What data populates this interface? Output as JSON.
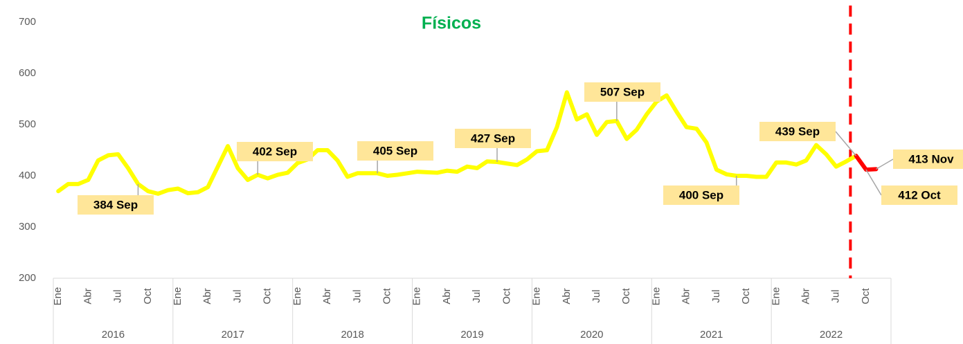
{
  "chart_data": {
    "type": "line",
    "title": "Físicos",
    "categories": [
      "Ene",
      null,
      null,
      "Abr",
      null,
      null,
      "Jul",
      null,
      null,
      "Oct",
      null,
      null,
      "Ene",
      null,
      null,
      "Abr",
      null,
      null,
      "Jul",
      null,
      null,
      "Oct",
      null,
      null,
      "Ene",
      null,
      null,
      "Abr",
      null,
      null,
      "Jul",
      null,
      null,
      "Oct",
      null,
      null,
      "Ene",
      null,
      null,
      "Abr",
      null,
      null,
      "Jul",
      null,
      null,
      "Oct",
      null,
      null,
      "Ene",
      null,
      null,
      "Abr",
      null,
      null,
      "Jul",
      null,
      null,
      "Oct",
      null,
      null,
      "Ene",
      null,
      null,
      "Abr",
      null,
      null,
      "Jul",
      null,
      null,
      "Oct",
      null,
      null,
      "Ene",
      null,
      null,
      "Abr",
      null,
      null,
      "Jul",
      null,
      null,
      "Oct",
      null,
      null
    ],
    "years": [
      "2016",
      "2017",
      "2018",
      "2019",
      "2020",
      "2021",
      "2022"
    ],
    "ylim": [
      200,
      700
    ],
    "yticks": [
      200,
      300,
      400,
      500,
      600,
      700
    ],
    "grid": false,
    "series": [
      {
        "color": "#ffff00",
        "values": [
          370,
          384,
          384,
          392,
          430,
          440,
          442,
          415,
          384,
          370,
          365,
          372,
          375,
          366,
          368,
          378,
          418,
          458,
          415,
          392,
          402,
          395,
          402,
          406,
          425,
          432,
          450,
          450,
          430,
          398,
          405,
          405,
          405,
          400,
          402,
          405,
          408,
          407,
          406,
          410,
          408,
          418,
          415,
          428,
          427,
          424,
          421,
          432,
          448,
          450,
          495,
          563,
          510,
          520,
          480,
          505,
          507,
          472,
          490,
          520,
          545,
          557,
          525,
          495,
          492,
          465,
          412,
          403,
          400,
          400,
          398,
          398,
          426,
          426,
          422,
          430,
          460,
          442,
          418,
          428,
          439,
          null,
          null,
          null
        ],
        "value_labels": [
          null,
          null,
          null,
          null,
          null,
          null,
          null,
          null,
          "384 Sep",
          null,
          null,
          null,
          null,
          null,
          null,
          null,
          null,
          null,
          null,
          null,
          "402 Sep",
          null,
          null,
          null,
          null,
          null,
          null,
          null,
          null,
          null,
          null,
          null,
          "405 Sep",
          null,
          null,
          null,
          null,
          null,
          null,
          null,
          null,
          null,
          null,
          null,
          "427 Sep",
          null,
          null,
          null,
          null,
          null,
          null,
          null,
          null,
          null,
          null,
          null,
          "507 Sep",
          null,
          null,
          null,
          null,
          null,
          null,
          null,
          null,
          null,
          null,
          null,
          "400 Sep",
          null,
          null,
          null,
          null,
          null,
          null,
          null,
          null,
          null,
          null,
          null,
          "439 Sep",
          null,
          null,
          null
        ]
      },
      {
        "color": "#ff0000",
        "values": [
          null,
          null,
          null,
          null,
          null,
          null,
          null,
          null,
          null,
          null,
          null,
          null,
          null,
          null,
          null,
          null,
          null,
          null,
          null,
          null,
          null,
          null,
          null,
          null,
          null,
          null,
          null,
          null,
          null,
          null,
          null,
          null,
          null,
          null,
          null,
          null,
          null,
          null,
          null,
          null,
          null,
          null,
          null,
          null,
          null,
          null,
          null,
          null,
          null,
          null,
          null,
          null,
          null,
          null,
          null,
          null,
          null,
          null,
          null,
          null,
          null,
          null,
          null,
          null,
          null,
          null,
          null,
          null,
          null,
          null,
          null,
          null,
          null,
          null,
          null,
          null,
          null,
          null,
          null,
          null,
          439,
          412,
          413,
          null
        ],
        "value_labels": [
          null,
          null,
          null,
          null,
          null,
          null,
          null,
          null,
          null,
          null,
          null,
          null,
          null,
          null,
          null,
          null,
          null,
          null,
          null,
          null,
          null,
          null,
          null,
          null,
          null,
          null,
          null,
          null,
          null,
          null,
          null,
          null,
          null,
          null,
          null,
          null,
          null,
          null,
          null,
          null,
          null,
          null,
          null,
          null,
          null,
          null,
          null,
          null,
          null,
          null,
          null,
          null,
          null,
          null,
          null,
          null,
          null,
          null,
          null,
          null,
          null,
          null,
          null,
          null,
          null,
          null,
          null,
          null,
          null,
          null,
          null,
          null,
          null,
          null,
          null,
          null,
          null,
          null,
          null,
          null,
          null,
          "412 Oct",
          "413 Nov",
          null
        ]
      }
    ]
  }
}
